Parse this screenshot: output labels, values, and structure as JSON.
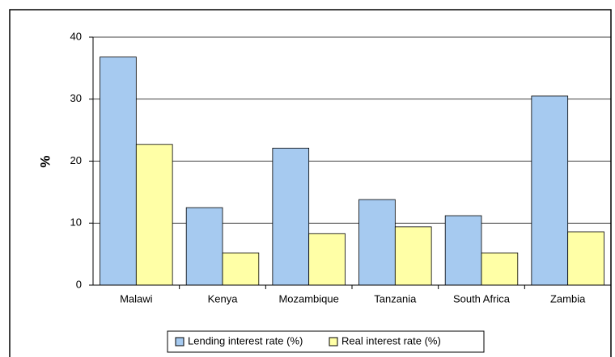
{
  "chart_data": {
    "type": "bar",
    "y_label": "%",
    "categories": [
      "Malawi",
      "Kenya",
      "Mozambique",
      "Tanzania",
      "South Africa",
      "Zambia"
    ],
    "series": [
      {
        "name": "Lending interest rate (%)",
        "color": "#a6caf0",
        "values": [
          36.8,
          12.5,
          22.1,
          13.8,
          11.2,
          30.5
        ]
      },
      {
        "name": "Real interest rate (%)",
        "color": "#ffffa6",
        "values": [
          22.7,
          5.2,
          8.3,
          9.4,
          5.2,
          8.6
        ]
      }
    ],
    "ylim": [
      0,
      40
    ],
    "yticks": [
      0,
      10,
      20,
      30,
      40
    ],
    "grid": true,
    "legend": "bottom"
  }
}
